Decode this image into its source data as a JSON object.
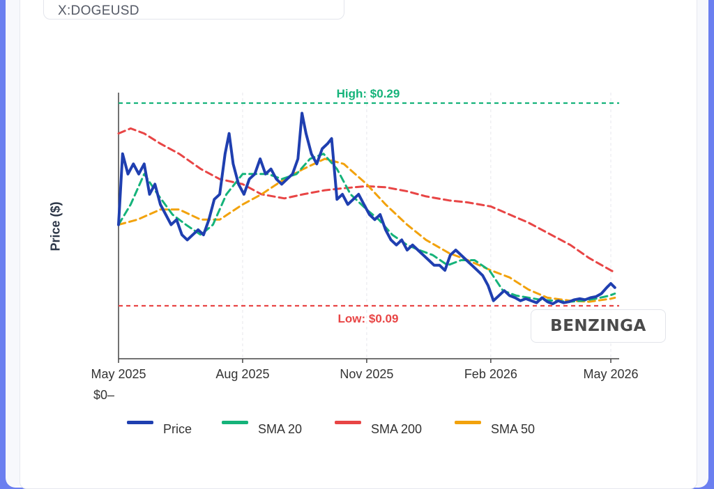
{
  "ticker": "X:DOGEUSD",
  "watermark": "BENZINGA",
  "colors": {
    "price": "#1f3fb0",
    "sma20": "#15b37a",
    "sma200": "#e84545",
    "sma50": "#f2a20c",
    "high": "#15b37a",
    "low": "#e84545"
  },
  "chart_data": {
    "type": "line",
    "ylabel": "Price ($)",
    "y_zero_label": "$0",
    "ylim": [
      0.03,
      0.3
    ],
    "x_ticks": [
      {
        "date": "2025-05-01",
        "label": "May 2025"
      },
      {
        "date": "2025-08-01",
        "label": "Aug 2025"
      },
      {
        "date": "2025-11-01",
        "label": "Nov 2025"
      },
      {
        "date": "2026-02-01",
        "label": "Feb 2026"
      },
      {
        "date": "2026-05-01",
        "label": "May 2026"
      }
    ],
    "reference_lines": [
      {
        "label": "High: $0.29",
        "value": 0.29,
        "color": "#15b37a"
      },
      {
        "label": "Low: $0.09",
        "value": 0.09,
        "color": "#e84545"
      }
    ],
    "legend_placement": "bottom",
    "grid": true,
    "series": [
      {
        "name": "Price",
        "color": "#1f3fb0",
        "points": [
          [
            "2025-05-01",
            0.17
          ],
          [
            "2025-05-04",
            0.24
          ],
          [
            "2025-05-08",
            0.22
          ],
          [
            "2025-05-12",
            0.23
          ],
          [
            "2025-05-16",
            0.22
          ],
          [
            "2025-05-20",
            0.23
          ],
          [
            "2025-05-24",
            0.2
          ],
          [
            "2025-05-28",
            0.21
          ],
          [
            "2025-06-01",
            0.19
          ],
          [
            "2025-06-05",
            0.18
          ],
          [
            "2025-06-09",
            0.17
          ],
          [
            "2025-06-13",
            0.175
          ],
          [
            "2025-06-17",
            0.16
          ],
          [
            "2025-06-21",
            0.155
          ],
          [
            "2025-06-25",
            0.16
          ],
          [
            "2025-06-29",
            0.165
          ],
          [
            "2025-07-03",
            0.16
          ],
          [
            "2025-07-07",
            0.175
          ],
          [
            "2025-07-11",
            0.195
          ],
          [
            "2025-07-15",
            0.2
          ],
          [
            "2025-07-19",
            0.24
          ],
          [
            "2025-07-22",
            0.26
          ],
          [
            "2025-07-25",
            0.23
          ],
          [
            "2025-07-29",
            0.21
          ],
          [
            "2025-08-02",
            0.2
          ],
          [
            "2025-08-06",
            0.215
          ],
          [
            "2025-08-10",
            0.22
          ],
          [
            "2025-08-14",
            0.235
          ],
          [
            "2025-08-18",
            0.22
          ],
          [
            "2025-08-22",
            0.225
          ],
          [
            "2025-08-26",
            0.215
          ],
          [
            "2025-08-30",
            0.21
          ],
          [
            "2025-09-03",
            0.215
          ],
          [
            "2025-09-07",
            0.22
          ],
          [
            "2025-09-11",
            0.235
          ],
          [
            "2025-09-14",
            0.28
          ],
          [
            "2025-09-17",
            0.26
          ],
          [
            "2025-09-21",
            0.24
          ],
          [
            "2025-09-25",
            0.23
          ],
          [
            "2025-09-29",
            0.245
          ],
          [
            "2025-10-03",
            0.25
          ],
          [
            "2025-10-06",
            0.255
          ],
          [
            "2025-10-10",
            0.195
          ],
          [
            "2025-10-14",
            0.2
          ],
          [
            "2025-10-18",
            0.19
          ],
          [
            "2025-10-22",
            0.195
          ],
          [
            "2025-10-26",
            0.2
          ],
          [
            "2025-10-30",
            0.19
          ],
          [
            "2025-11-03",
            0.18
          ],
          [
            "2025-11-07",
            0.175
          ],
          [
            "2025-11-11",
            0.18
          ],
          [
            "2025-11-15",
            0.165
          ],
          [
            "2025-11-19",
            0.155
          ],
          [
            "2025-11-23",
            0.15
          ],
          [
            "2025-11-27",
            0.155
          ],
          [
            "2025-12-01",
            0.145
          ],
          [
            "2025-12-05",
            0.15
          ],
          [
            "2025-12-09",
            0.145
          ],
          [
            "2025-12-13",
            0.14
          ],
          [
            "2025-12-17",
            0.135
          ],
          [
            "2025-12-21",
            0.13
          ],
          [
            "2025-12-25",
            0.13
          ],
          [
            "2025-12-29",
            0.125
          ],
          [
            "2026-01-02",
            0.14
          ],
          [
            "2026-01-06",
            0.145
          ],
          [
            "2026-01-10",
            0.14
          ],
          [
            "2026-01-14",
            0.135
          ],
          [
            "2026-01-18",
            0.13
          ],
          [
            "2026-01-22",
            0.125
          ],
          [
            "2026-01-26",
            0.12
          ],
          [
            "2026-01-30",
            0.11
          ],
          [
            "2026-02-03",
            0.095
          ],
          [
            "2026-02-07",
            0.1
          ],
          [
            "2026-02-11",
            0.105
          ],
          [
            "2026-02-15",
            0.1
          ],
          [
            "2026-02-19",
            0.098
          ],
          [
            "2026-02-23",
            0.095
          ],
          [
            "2026-02-27",
            0.097
          ],
          [
            "2026-03-03",
            0.095
          ],
          [
            "2026-03-07",
            0.093
          ],
          [
            "2026-03-11",
            0.098
          ],
          [
            "2026-03-15",
            0.094
          ],
          [
            "2026-03-19",
            0.092
          ],
          [
            "2026-03-23",
            0.095
          ],
          [
            "2026-03-27",
            0.093
          ],
          [
            "2026-03-31",
            0.094
          ],
          [
            "2026-04-04",
            0.096
          ],
          [
            "2026-04-08",
            0.097
          ],
          [
            "2026-04-12",
            0.096
          ],
          [
            "2026-04-16",
            0.098
          ],
          [
            "2026-04-20",
            0.099
          ],
          [
            "2026-04-24",
            0.102
          ],
          [
            "2026-04-28",
            0.108
          ],
          [
            "2026-05-01",
            0.112
          ],
          [
            "2026-05-04",
            0.108
          ]
        ]
      },
      {
        "name": "SMA 20",
        "color": "#15b37a",
        "points": [
          [
            "2025-05-01",
            0.17
          ],
          [
            "2025-05-10",
            0.19
          ],
          [
            "2025-05-20",
            0.22
          ],
          [
            "2025-05-30",
            0.2
          ],
          [
            "2025-06-10",
            0.18
          ],
          [
            "2025-06-20",
            0.17
          ],
          [
            "2025-07-01",
            0.16
          ],
          [
            "2025-07-10",
            0.17
          ],
          [
            "2025-07-20",
            0.2
          ],
          [
            "2025-08-01",
            0.22
          ],
          [
            "2025-08-10",
            0.22
          ],
          [
            "2025-08-20",
            0.22
          ],
          [
            "2025-08-30",
            0.215
          ],
          [
            "2025-09-10",
            0.22
          ],
          [
            "2025-09-20",
            0.235
          ],
          [
            "2025-09-30",
            0.24
          ],
          [
            "2025-10-10",
            0.225
          ],
          [
            "2025-10-20",
            0.2
          ],
          [
            "2025-11-01",
            0.185
          ],
          [
            "2025-11-10",
            0.175
          ],
          [
            "2025-11-20",
            0.16
          ],
          [
            "2025-12-01",
            0.15
          ],
          [
            "2025-12-10",
            0.145
          ],
          [
            "2025-12-20",
            0.14
          ],
          [
            "2025-12-31",
            0.13
          ],
          [
            "2026-01-10",
            0.135
          ],
          [
            "2026-01-20",
            0.135
          ],
          [
            "2026-01-31",
            0.125
          ],
          [
            "2026-02-10",
            0.105
          ],
          [
            "2026-02-20",
            0.1
          ],
          [
            "2026-03-01",
            0.098
          ],
          [
            "2026-03-10",
            0.096
          ],
          [
            "2026-03-20",
            0.095
          ],
          [
            "2026-03-31",
            0.094
          ],
          [
            "2026-04-10",
            0.095
          ],
          [
            "2026-04-20",
            0.097
          ],
          [
            "2026-04-30",
            0.1
          ],
          [
            "2026-05-04",
            0.102
          ]
        ]
      },
      {
        "name": "SMA 200",
        "color": "#e84545",
        "points": [
          [
            "2025-05-01",
            0.26
          ],
          [
            "2025-05-10",
            0.265
          ],
          [
            "2025-05-20",
            0.26
          ],
          [
            "2025-06-01",
            0.25
          ],
          [
            "2025-06-15",
            0.24
          ],
          [
            "2025-07-01",
            0.225
          ],
          [
            "2025-07-15",
            0.215
          ],
          [
            "2025-08-01",
            0.21
          ],
          [
            "2025-08-15",
            0.2
          ],
          [
            "2025-09-01",
            0.196
          ],
          [
            "2025-09-15",
            0.2
          ],
          [
            "2025-10-01",
            0.204
          ],
          [
            "2025-10-15",
            0.206
          ],
          [
            "2025-11-01",
            0.208
          ],
          [
            "2025-11-15",
            0.207
          ],
          [
            "2025-12-01",
            0.203
          ],
          [
            "2025-12-15",
            0.198
          ],
          [
            "2026-01-01",
            0.194
          ],
          [
            "2026-01-15",
            0.192
          ],
          [
            "2026-02-01",
            0.188
          ],
          [
            "2026-02-15",
            0.18
          ],
          [
            "2026-03-01",
            0.172
          ],
          [
            "2026-03-15",
            0.162
          ],
          [
            "2026-04-01",
            0.15
          ],
          [
            "2026-04-15",
            0.137
          ],
          [
            "2026-05-01",
            0.125
          ],
          [
            "2026-05-04",
            0.123
          ]
        ]
      },
      {
        "name": "SMA 50",
        "color": "#f2a20c",
        "points": [
          [
            "2025-05-01",
            0.17
          ],
          [
            "2025-05-15",
            0.175
          ],
          [
            "2025-06-01",
            0.185
          ],
          [
            "2025-06-15",
            0.185
          ],
          [
            "2025-07-01",
            0.175
          ],
          [
            "2025-07-15",
            0.175
          ],
          [
            "2025-08-01",
            0.19
          ],
          [
            "2025-08-15",
            0.2
          ],
          [
            "2025-09-01",
            0.215
          ],
          [
            "2025-09-15",
            0.225
          ],
          [
            "2025-10-01",
            0.235
          ],
          [
            "2025-10-15",
            0.23
          ],
          [
            "2025-11-01",
            0.21
          ],
          [
            "2025-11-15",
            0.19
          ],
          [
            "2025-12-01",
            0.17
          ],
          [
            "2025-12-15",
            0.155
          ],
          [
            "2026-01-01",
            0.142
          ],
          [
            "2026-01-15",
            0.135
          ],
          [
            "2026-02-01",
            0.125
          ],
          [
            "2026-02-15",
            0.118
          ],
          [
            "2026-03-01",
            0.106
          ],
          [
            "2026-03-15",
            0.098
          ],
          [
            "2026-04-01",
            0.095
          ],
          [
            "2026-04-15",
            0.094
          ],
          [
            "2026-05-01",
            0.097
          ],
          [
            "2026-05-04",
            0.098
          ]
        ]
      }
    ]
  }
}
